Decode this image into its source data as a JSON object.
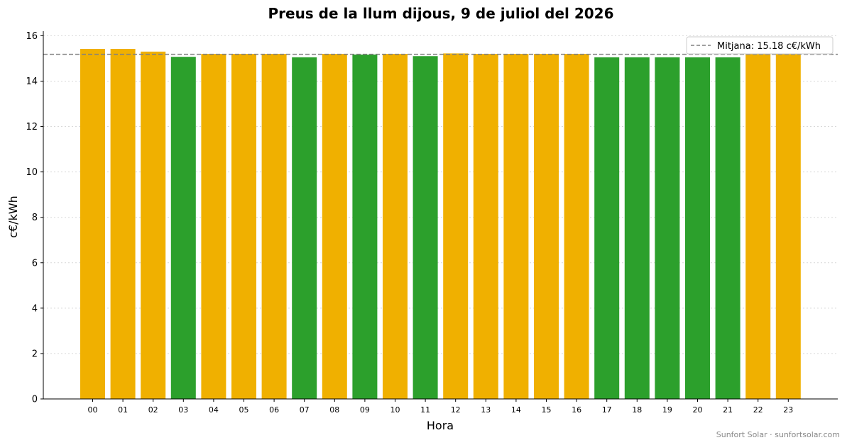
{
  "chart_data": {
    "type": "bar",
    "title": "Preus de la llum dijous, 9 de juliol del 2026",
    "xlabel": "Hora",
    "ylabel": "c€/kWh",
    "ylim": [
      0,
      16.2
    ],
    "yticks": [
      0,
      2,
      4,
      6,
      8,
      10,
      12,
      14,
      16
    ],
    "grid": "horizontal dotted",
    "categories": [
      "00",
      "01",
      "02",
      "03",
      "04",
      "05",
      "06",
      "07",
      "08",
      "09",
      "10",
      "11",
      "12",
      "13",
      "14",
      "15",
      "16",
      "17",
      "18",
      "19",
      "20",
      "21",
      "22",
      "23"
    ],
    "values": [
      15.42,
      15.42,
      15.3,
      15.07,
      15.2,
      15.2,
      15.2,
      15.05,
      15.2,
      15.17,
      15.2,
      15.1,
      15.22,
      15.2,
      15.2,
      15.2,
      15.2,
      15.05,
      15.05,
      15.05,
      15.05,
      15.05,
      15.2,
      15.2
    ],
    "bar_colors": [
      "#f0b000",
      "#f0b000",
      "#f0b000",
      "#2ca02c",
      "#f0b000",
      "#f0b000",
      "#f0b000",
      "#2ca02c",
      "#f0b000",
      "#2ca02c",
      "#f0b000",
      "#2ca02c",
      "#f0b000",
      "#f0b000",
      "#f0b000",
      "#f0b000",
      "#f0b000",
      "#2ca02c",
      "#2ca02c",
      "#2ca02c",
      "#2ca02c",
      "#2ca02c",
      "#f0b000",
      "#f0b000"
    ],
    "mean": 15.18,
    "mean_label": "Mitjana: 15.18 c€/kWh",
    "mean_line_color": "#808080",
    "legend_position": "top-right"
  },
  "footer": "Sunfort Solar · sunfortsolar.com"
}
